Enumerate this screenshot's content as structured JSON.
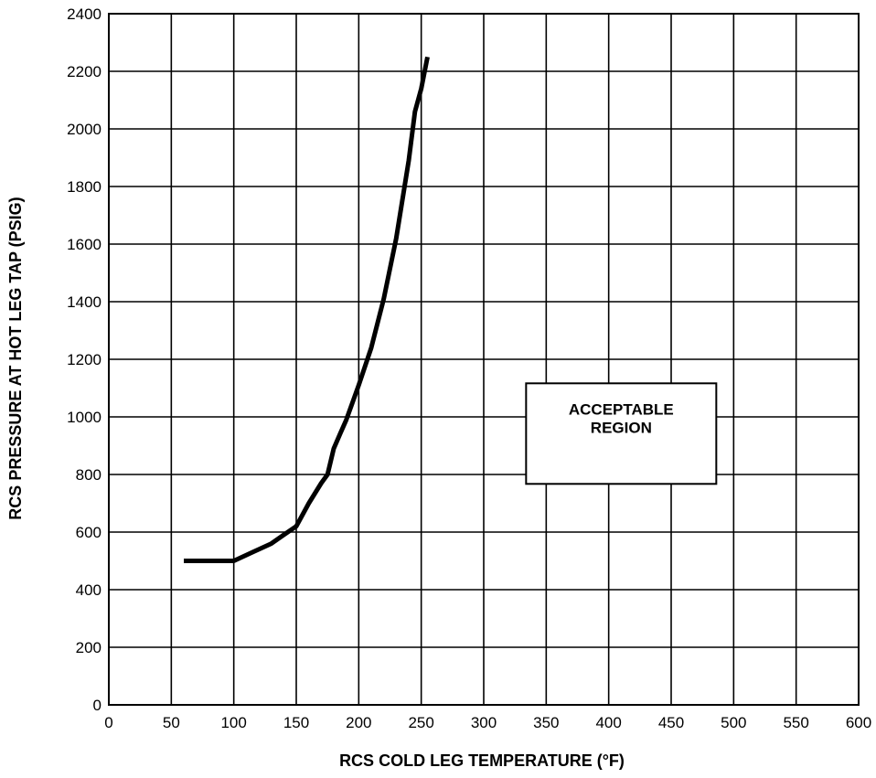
{
  "chart_data": {
    "type": "line",
    "title": "",
    "xlabel": "RCS COLD LEG TEMPERATURE (°F)",
    "ylabel": "RCS PRESSURE AT HOT LEG TAP (PSIG)",
    "xlim": [
      0,
      600
    ],
    "ylim": [
      0,
      2400
    ],
    "xticks": [
      0,
      50,
      100,
      150,
      200,
      250,
      300,
      350,
      400,
      450,
      500,
      550,
      600
    ],
    "yticks": [
      0,
      200,
      400,
      600,
      800,
      1000,
      1200,
      1400,
      1600,
      1800,
      2000,
      2200,
      2400
    ],
    "grid": true,
    "legend": "none",
    "line_color": "#000000",
    "series": [
      {
        "x": [
          60,
          100,
          115,
          130,
          140,
          150,
          160,
          170,
          175,
          180,
          185,
          190,
          195,
          200,
          210,
          220,
          230,
          240,
          245,
          250,
          255
        ],
        "y": [
          500,
          500,
          530,
          560,
          590,
          620,
          700,
          770,
          800,
          890,
          940,
          990,
          1050,
          1110,
          1240,
          1410,
          1620,
          1890,
          2060,
          2140,
          2250
        ]
      }
    ],
    "annotations": [
      {
        "lines": [
          "ACCEPTABLE",
          "REGION"
        ],
        "x": 410,
        "y": 980
      }
    ]
  }
}
